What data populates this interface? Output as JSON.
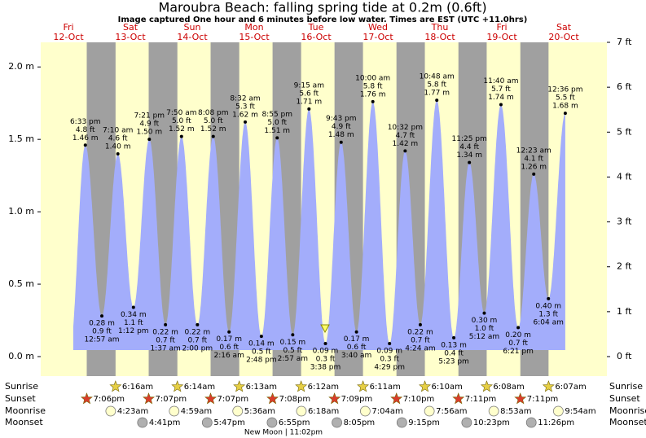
{
  "chart_data": {
    "type": "tide",
    "title": "Maroubra Beach: falling  spring tide at 0.2m (0.6ft)",
    "subtitle": "Image captured One hour and 6 minutes before low water. Times are EST (UTC +11.0hrs)",
    "color": "#a3adfb",
    "day_color": "#ffffcc",
    "night_color": "#a0a0a0",
    "ylim": [
      -0.135,
      2.17
    ],
    "yticks": [
      {
        "value": 0,
        "label": "0.0 m"
      },
      {
        "value": 0.5,
        "label": "0.5 m"
      },
      {
        "value": 1,
        "label": "1.0 m"
      },
      {
        "value": 1.5,
        "label": "1.5 m"
      },
      {
        "value": 2,
        "label": "2.0 m"
      }
    ],
    "y2lim": [
      -0.435,
      7.0
    ],
    "y2ticks": [
      {
        "value": 0,
        "label": "0 ft"
      },
      {
        "value": 1,
        "label": "1 ft"
      },
      {
        "value": 2,
        "label": "2 ft"
      },
      {
        "value": 3,
        "label": "3 ft"
      },
      {
        "value": 4,
        "label": "4 ft"
      },
      {
        "value": 5,
        "label": "5 ft"
      },
      {
        "value": 6,
        "label": "6 ft"
      },
      {
        "value": 7,
        "label": "7 ft"
      }
    ],
    "row_labels": [
      "Sunrise",
      "Sunset",
      "Moonrise",
      "Moonset"
    ],
    "moon_phase": "New Moon | 11:02pm",
    "days": [
      {
        "day": "Fri",
        "date": "12-Oct",
        "sunrise": null,
        "sunset": "7:06pm",
        "moonrise": null,
        "moonset": null
      },
      {
        "day": "Sat",
        "date": "13-Oct",
        "sunrise": "6:16am",
        "sunset": "7:07pm",
        "moonrise": "4:23am",
        "moonset": "4:41pm"
      },
      {
        "day": "Sun",
        "date": "14-Oct",
        "sunrise": "6:14am",
        "sunset": "7:07pm",
        "moonrise": "4:59am",
        "moonset": "5:47pm"
      },
      {
        "day": "Mon",
        "date": "15-Oct",
        "sunrise": "6:13am",
        "sunset": "7:08pm",
        "moonrise": "5:36am",
        "moonset": "6:55pm"
      },
      {
        "day": "Tue",
        "date": "16-Oct",
        "sunrise": "6:12am",
        "sunset": "7:09pm",
        "moonrise": "6:18am",
        "moonset": "8:05pm"
      },
      {
        "day": "Wed",
        "date": "17-Oct",
        "sunrise": "6:11am",
        "sunset": "7:10pm",
        "moonrise": "7:04am",
        "moonset": "9:15pm"
      },
      {
        "day": "Thu",
        "date": "18-Oct",
        "sunrise": "6:10am",
        "sunset": "7:11pm",
        "moonrise": "7:56am",
        "moonset": "10:23pm"
      },
      {
        "day": "Fri",
        "date": "19-Oct",
        "sunrise": "6:08am",
        "sunset": "7:11pm",
        "moonrise": "8:53am",
        "moonset": "11:26pm"
      },
      {
        "day": "Sat",
        "date": "20-Oct",
        "sunrise": "6:07am",
        "sunset": null,
        "moonrise": "9:54am",
        "moonset": null
      }
    ],
    "tides": {
      "times": [
        "6:33 pm",
        "12:57 am",
        "7:10 am",
        "1:12 pm",
        "7:21 pm",
        "1:37 am",
        "7:50 am",
        "2:00 pm",
        "8:08 pm",
        "2:16 am",
        "8:32 am",
        "2:48 pm",
        "8:55 pm",
        "2:57 am",
        "9:15 am",
        "3:38 pm",
        "9:43 pm",
        "3:40 am",
        "10:00 am",
        "4:29 pm",
        "10:32 pm",
        "4:24 am",
        "10:48 am",
        "5:23 pm",
        "11:25 pm",
        "5:12 am",
        "11:40 am",
        "6:21 pm",
        "12:23 am",
        "6:04 am",
        "12:36 pm"
      ],
      "values": [
        1.46,
        0.28,
        1.4,
        0.34,
        1.5,
        0.22,
        1.52,
        0.22,
        1.52,
        0.17,
        1.62,
        0.14,
        1.51,
        0.15,
        1.71,
        0.09,
        1.48,
        0.17,
        1.76,
        0.09,
        1.42,
        0.22,
        1.77,
        0.13,
        1.34,
        0.3,
        1.74,
        0.2,
        1.26,
        0.4,
        1.68
      ],
      "value_labels": [
        "1.46 m",
        "0.28 m",
        "1.40 m",
        "0.34 m",
        "1.50 m",
        "0.22 m",
        "1.52 m",
        "0.22 m",
        "1.52 m",
        "0.17 m",
        "1.62 m",
        "0.14 m",
        "1.51 m",
        "0.15 m",
        "1.71 m",
        "0.09 m",
        "1.48 m",
        "0.17 m",
        "1.76 m",
        "0.09 m",
        "1.42 m",
        "0.22 m",
        "1.77 m",
        "0.13 m",
        "1.34 m",
        "0.30 m",
        "1.74 m",
        "0.20 m",
        "1.26 m",
        "0.40 m",
        "1.68 m"
      ],
      "ft_labels": [
        "4.8 ft",
        "0.9 ft",
        "4.6 ft",
        "1.1 ft",
        "4.9 ft",
        "0.7 ft",
        "5.0 ft",
        "0.7 ft",
        "5.0 ft",
        "0.6 ft",
        "5.3 ft",
        "0.5 ft",
        "5.0 ft",
        "0.5 ft",
        "5.6 ft",
        "0.3 ft",
        "4.9 ft",
        "0.6 ft",
        "5.8 ft",
        "0.3 ft",
        "4.7 ft",
        "0.7 ft",
        "5.8 ft",
        "0.4 ft",
        "4.4 ft",
        "1.0 ft",
        "5.7 ft",
        "0.7 ft",
        "4.1 ft",
        "1.3 ft",
        "5.5 ft"
      ]
    }
  }
}
